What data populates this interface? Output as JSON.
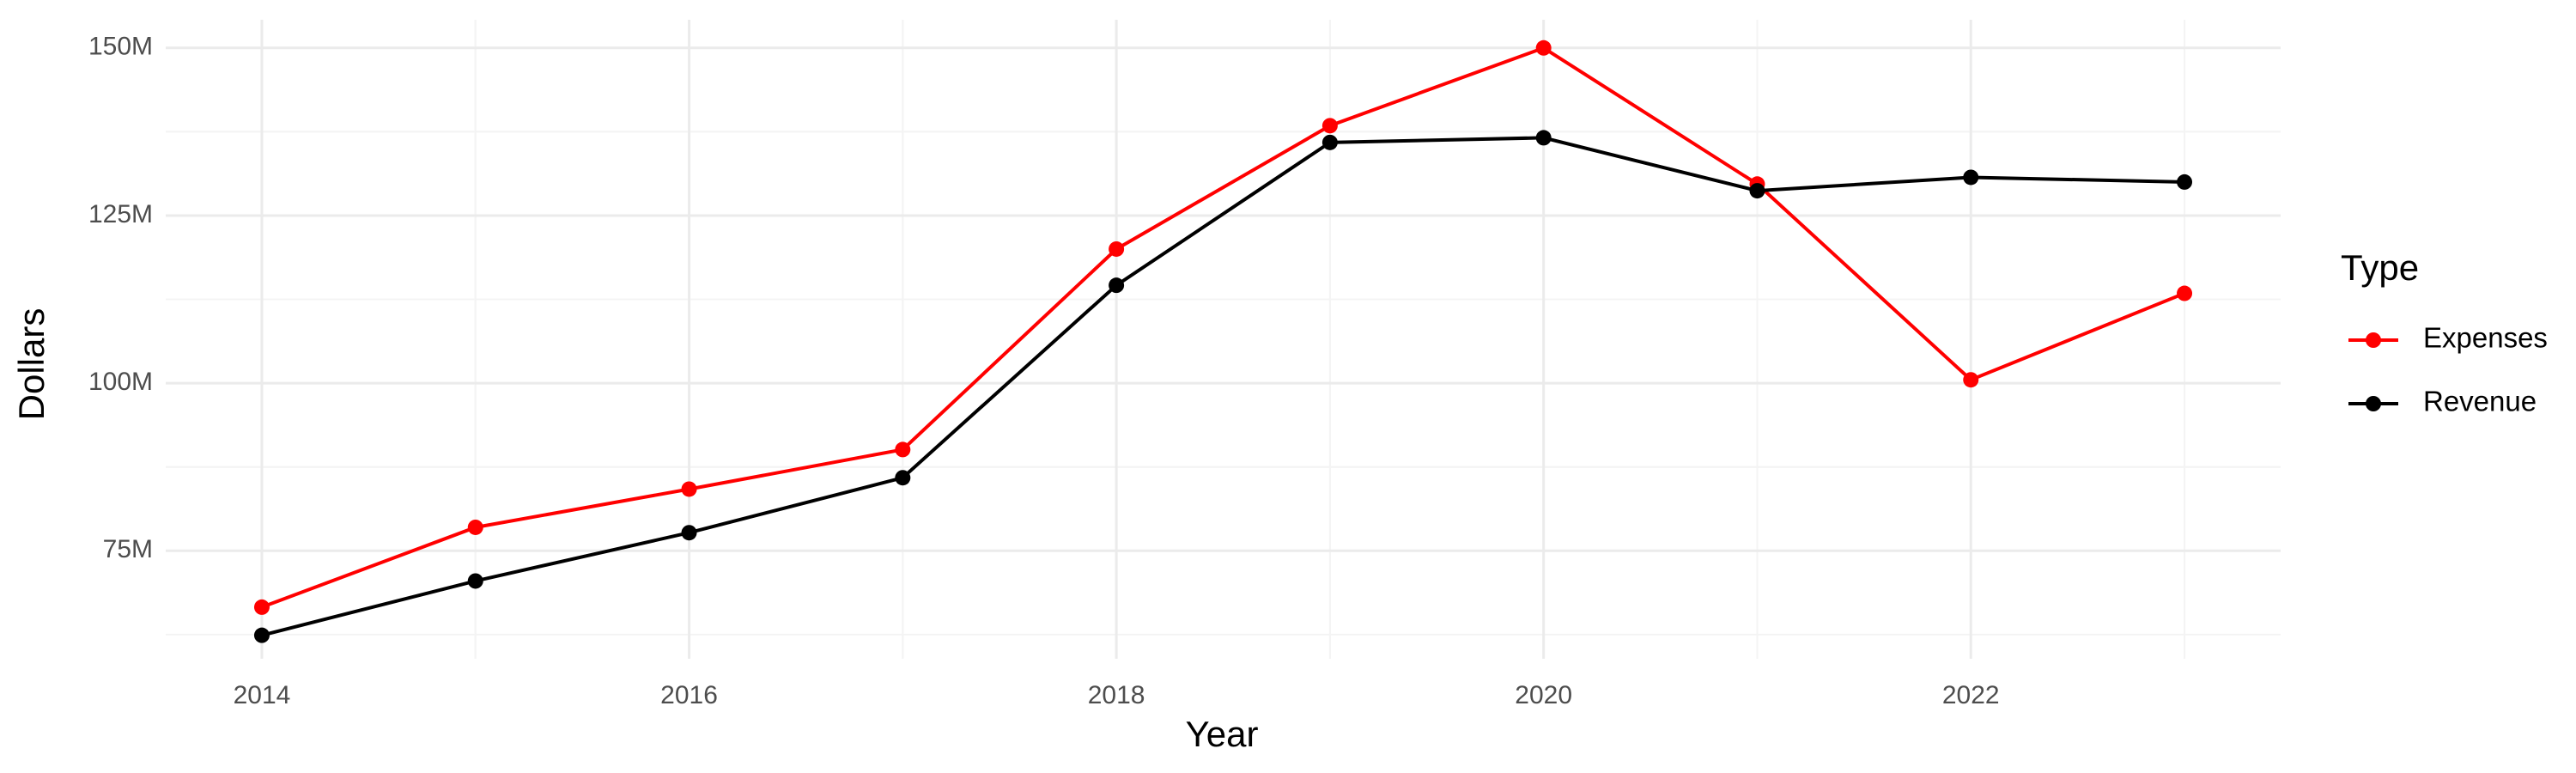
{
  "chart_data": {
    "type": "line",
    "x_label": "Year",
    "y_label": "Dollars",
    "x": [
      2014,
      2015,
      2016,
      2017,
      2018,
      2019,
      2020,
      2021,
      2022,
      2023
    ],
    "series": [
      {
        "name": "Expenses",
        "color": "#ff0000",
        "values": [
          66600000,
          78500000,
          84200000,
          90100000,
          120000000,
          138400000,
          150000000,
          129700000,
          100500000,
          113400000
        ]
      },
      {
        "name": "Revenue",
        "color": "#000000",
        "values": [
          62400000,
          70500000,
          77700000,
          85900000,
          114600000,
          135900000,
          136600000,
          128700000,
          130700000,
          130000000
        ]
      }
    ],
    "legend_title": "Type",
    "legend": "right",
    "xlim": [
      2013.55,
      2023.45
    ],
    "xticks": [
      2014,
      2016,
      2018,
      2020,
      2022
    ],
    "ylim": [
      58900000,
      154200000
    ],
    "yticks": [
      {
        "value": 75000000,
        "label": "75M"
      },
      {
        "value": 100000000,
        "label": "100M"
      },
      {
        "value": 125000000,
        "label": "125M"
      },
      {
        "value": 150000000,
        "label": "150M"
      }
    ],
    "grid": true
  }
}
